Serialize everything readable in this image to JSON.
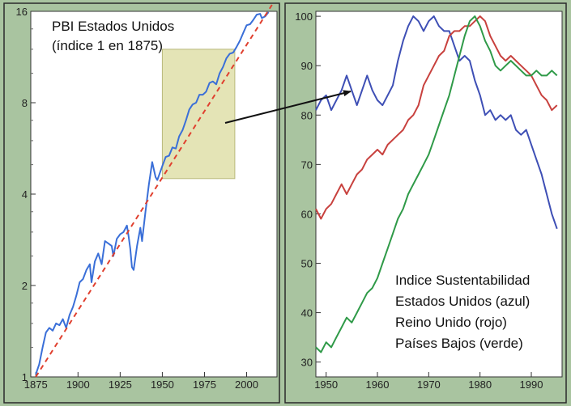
{
  "chart_data": [
    {
      "type": "line",
      "title": "PBI Estados Unidos",
      "subtitle": "(índice 1 en 1875)",
      "xlabel": "",
      "ylabel": "",
      "y_scale": "log2",
      "xlim": [
        1872,
        2018
      ],
      "ylim": [
        1,
        16
      ],
      "x_ticks": [
        1875,
        1900,
        1925,
        1950,
        1975,
        2000
      ],
      "x_tick_labels": [
        "1875",
        "1900",
        "1925",
        "1950",
        "1975",
        "2000"
      ],
      "y_ticks": [
        1,
        2,
        4,
        8,
        16
      ],
      "y_tick_labels": [
        "1",
        "2",
        "4",
        "8",
        "16"
      ],
      "grid": false,
      "series": [
        {
          "color": "#3a6fd8",
          "style": "solid",
          "x": [
            1875,
            1877,
            1879,
            1881,
            1883,
            1885,
            1887,
            1889,
            1891,
            1893,
            1895,
            1897,
            1899,
            1901,
            1903,
            1905,
            1907,
            1908,
            1910,
            1912,
            1914,
            1916,
            1918,
            1920,
            1921,
            1923,
            1925,
            1927,
            1929,
            1930,
            1931,
            1932,
            1933,
            1935,
            1937,
            1938,
            1940,
            1942,
            1944,
            1946,
            1947,
            1948,
            1950,
            1952,
            1954,
            1956,
            1958,
            1960,
            1962,
            1964,
            1966,
            1968,
            1970,
            1972,
            1974,
            1976,
            1978,
            1980,
            1982,
            1984,
            1986,
            1988,
            1990,
            1992,
            1994,
            1996,
            1998,
            2000,
            2002,
            2004,
            2006,
            2008,
            2009,
            2011,
            2013
          ],
          "values": [
            1.02,
            1.1,
            1.25,
            1.4,
            1.45,
            1.42,
            1.5,
            1.48,
            1.55,
            1.45,
            1.6,
            1.7,
            1.85,
            2.05,
            2.1,
            2.25,
            2.35,
            2.05,
            2.4,
            2.55,
            2.35,
            2.8,
            2.75,
            2.7,
            2.5,
            2.85,
            2.95,
            3.0,
            3.15,
            2.9,
            2.65,
            2.3,
            2.25,
            2.7,
            3.1,
            2.8,
            3.5,
            4.3,
            5.1,
            4.55,
            4.45,
            4.6,
            4.95,
            5.3,
            5.35,
            5.7,
            5.65,
            6.2,
            6.5,
            7.0,
            7.6,
            7.9,
            8.0,
            8.5,
            8.5,
            8.7,
            9.3,
            9.4,
            9.2,
            10.0,
            10.5,
            11.2,
            11.6,
            11.7,
            12.2,
            12.8,
            13.6,
            14.4,
            14.5,
            15.0,
            15.6,
            15.7,
            15.2,
            15.4,
            15.9
          ]
        },
        {
          "color": "#e0402f",
          "style": "dashed",
          "x": [
            1875,
            2015
          ],
          "values": [
            1.0,
            16.8
          ]
        }
      ],
      "highlight": {
        "x_range": [
          1950,
          1993
        ]
      }
    },
    {
      "type": "line",
      "xlim": [
        1948,
        1996
      ],
      "ylim": [
        27,
        101
      ],
      "x_ticks": [
        1950,
        1960,
        1970,
        1980,
        1990
      ],
      "x_tick_labels": [
        "1950",
        "1960",
        "1970",
        "1980",
        "1990"
      ],
      "y_ticks": [
        30,
        40,
        50,
        60,
        70,
        80,
        90,
        100
      ],
      "y_tick_labels": [
        "30",
        "40",
        "50",
        "60",
        "70",
        "80",
        "90",
        "100"
      ],
      "grid": false,
      "annotation_lines": [
        "Indice Sustentabilidad",
        "Estados Unidos (azul)",
        "Reino Unido (rojo)",
        "Países Bajos (verde)"
      ],
      "series": [
        {
          "color": "#3e4fb5",
          "x": [
            1948,
            1949,
            1950,
            1951,
            1952,
            1953,
            1954,
            1955,
            1956,
            1957,
            1958,
            1959,
            1960,
            1961,
            1962,
            1963,
            1964,
            1965,
            1966,
            1967,
            1968,
            1969,
            1970,
            1971,
            1972,
            1973,
            1974,
            1975,
            1976,
            1977,
            1978,
            1979,
            1980,
            1981,
            1982,
            1983,
            1984,
            1985,
            1986,
            1987,
            1988,
            1989,
            1990,
            1991,
            1992,
            1993,
            1994,
            1995
          ],
          "values": [
            81,
            83,
            84,
            81,
            83,
            85,
            88,
            85,
            82,
            85,
            88,
            85,
            83,
            82,
            84,
            86,
            91,
            95,
            98,
            100,
            99,
            97,
            99,
            100,
            98,
            97,
            97,
            94,
            91,
            92,
            91,
            87,
            84,
            80,
            81,
            79,
            80,
            79,
            80,
            77,
            76,
            77,
            74,
            71,
            68,
            64,
            60,
            57
          ]
        },
        {
          "color": "#c8413e",
          "x": [
            1948,
            1949,
            1950,
            1951,
            1952,
            1953,
            1954,
            1955,
            1956,
            1957,
            1958,
            1959,
            1960,
            1961,
            1962,
            1963,
            1964,
            1965,
            1966,
            1967,
            1968,
            1969,
            1970,
            1971,
            1972,
            1973,
            1974,
            1975,
            1976,
            1977,
            1978,
            1979,
            1980,
            1981,
            1982,
            1983,
            1984,
            1985,
            1986,
            1987,
            1988,
            1989,
            1990,
            1991,
            1992,
            1993,
            1994,
            1995
          ],
          "values": [
            61,
            59,
            61,
            62,
            64,
            66,
            64,
            66,
            68,
            69,
            71,
            72,
            73,
            72,
            74,
            75,
            76,
            77,
            79,
            80,
            82,
            86,
            88,
            90,
            92,
            93,
            96,
            97,
            97,
            98,
            98,
            99,
            100,
            99,
            96,
            94,
            92,
            91,
            92,
            91,
            90,
            89,
            88,
            86,
            84,
            83,
            81,
            82
          ]
        },
        {
          "color": "#2f9a48",
          "x": [
            1948,
            1949,
            1950,
            1951,
            1952,
            1953,
            1954,
            1955,
            1956,
            1957,
            1958,
            1959,
            1960,
            1961,
            1962,
            1963,
            1964,
            1965,
            1966,
            1967,
            1968,
            1969,
            1970,
            1971,
            1972,
            1973,
            1974,
            1975,
            1976,
            1977,
            1978,
            1979,
            1980,
            1981,
            1982,
            1983,
            1984,
            1985,
            1986,
            1987,
            1988,
            1989,
            1990,
            1991,
            1992,
            1993,
            1994,
            1995
          ],
          "values": [
            33,
            32,
            34,
            33,
            35,
            37,
            39,
            38,
            40,
            42,
            44,
            45,
            47,
            50,
            53,
            56,
            59,
            61,
            64,
            66,
            68,
            70,
            72,
            75,
            78,
            81,
            84,
            88,
            92,
            96,
            99,
            100,
            98,
            95,
            93,
            90,
            89,
            90,
            91,
            90,
            89,
            88,
            88,
            89,
            88,
            88,
            89,
            88
          ]
        }
      ]
    }
  ]
}
